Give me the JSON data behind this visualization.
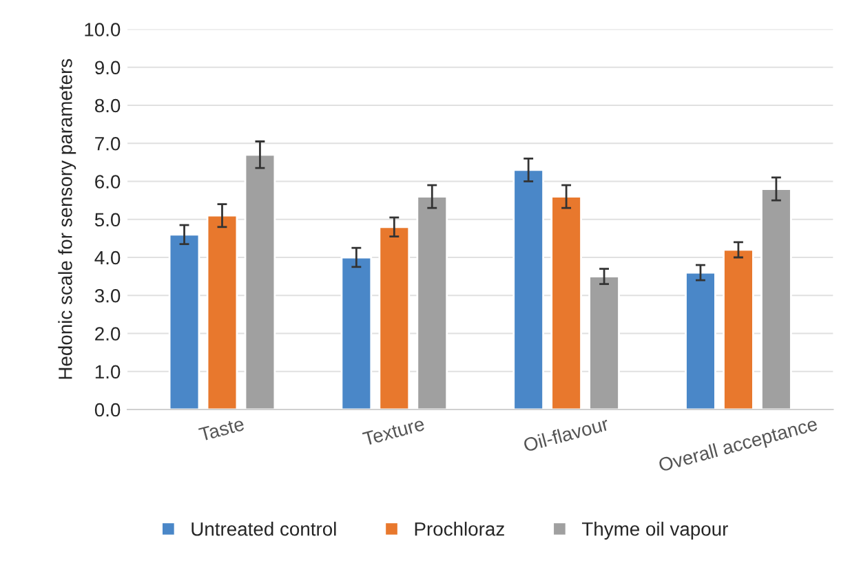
{
  "chart_data": {
    "type": "bar",
    "ylabel": "Hedonic scale for sensory parameters",
    "categories": [
      "Taste",
      "Texture",
      "Oil-flavour",
      "Overall acceptance"
    ],
    "series": [
      {
        "name": "Untreated control",
        "color": "#4a87c8",
        "values": [
          4.6,
          4.0,
          6.3,
          3.6
        ],
        "errors": [
          0.25,
          0.25,
          0.3,
          0.2
        ]
      },
      {
        "name": "Prochloraz",
        "color": "#e8782d",
        "values": [
          5.1,
          4.8,
          5.6,
          4.2
        ],
        "errors": [
          0.3,
          0.25,
          0.3,
          0.2
        ]
      },
      {
        "name": "Thyme oil vapour",
        "color": "#a0a0a0",
        "values": [
          6.7,
          5.6,
          3.5,
          5.8
        ],
        "errors": [
          0.35,
          0.3,
          0.2,
          0.3
        ]
      }
    ],
    "ylim": [
      0,
      10
    ],
    "yticks": [
      {
        "value": 0,
        "label": "0.0"
      },
      {
        "value": 1,
        "label": "1.0"
      },
      {
        "value": 2,
        "label": "2.0"
      },
      {
        "value": 3,
        "label": "3.0"
      },
      {
        "value": 4,
        "label": "4.0"
      },
      {
        "value": 5,
        "label": "5.0"
      },
      {
        "value": 6,
        "label": "6.0"
      },
      {
        "value": 7,
        "label": "7.0"
      },
      {
        "value": 8,
        "label": "8.0"
      },
      {
        "value": 9,
        "label": "9.0"
      },
      {
        "value": 10,
        "label": "10.0"
      }
    ],
    "grid": "y",
    "legend": "bottom"
  }
}
